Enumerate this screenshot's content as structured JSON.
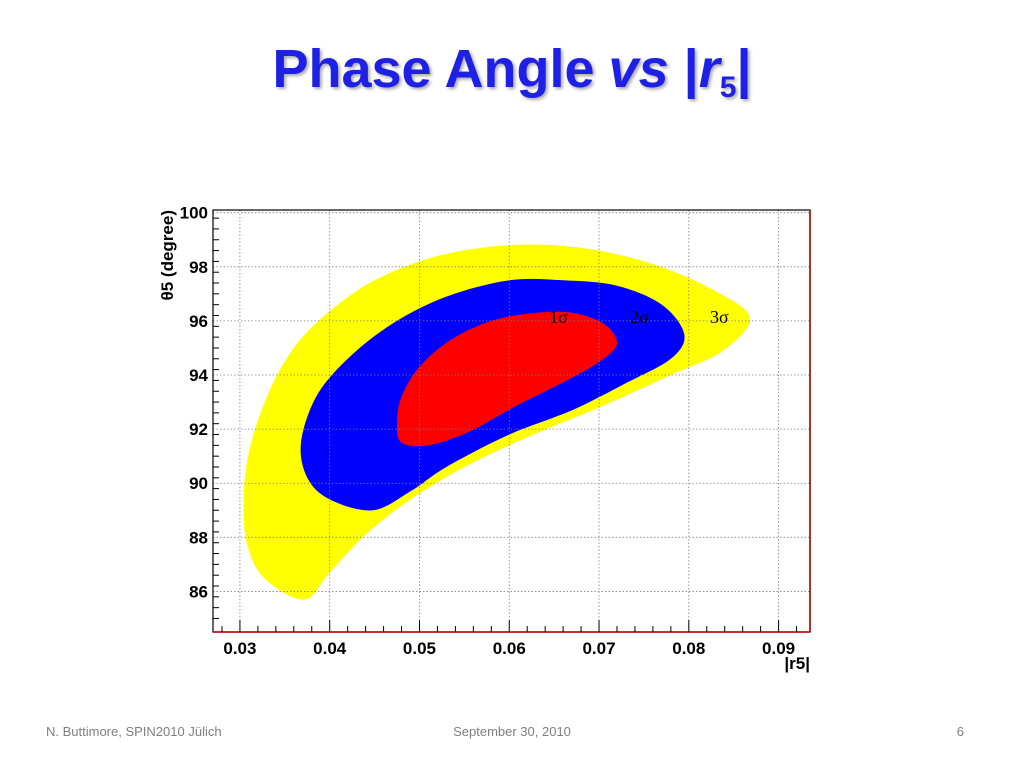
{
  "slide": {
    "title_main": "Phase Angle",
    "title_vs": "vs",
    "title_bar_open": "|",
    "title_r": "r",
    "title_sub": "5",
    "title_bar_close": "|"
  },
  "footer": {
    "left": "N. Buttimore, SPIN2010 Jülich",
    "center": "September 30, 2010",
    "page": "6"
  },
  "chart_data": {
    "type": "contour",
    "xlabel": "|r5|",
    "ylabel": "θ5 (degree)",
    "xlim": [
      0.027,
      0.0935
    ],
    "ylim": [
      84.5,
      100.1
    ],
    "xticks": [
      0.03,
      0.04,
      0.05,
      0.06,
      0.07,
      0.08,
      0.09
    ],
    "xtick_labels": [
      "0.03",
      "0.04",
      "0.05",
      "0.06",
      "0.07",
      "0.08",
      "0.09"
    ],
    "yticks": [
      86,
      88,
      90,
      92,
      94,
      96,
      98,
      100
    ],
    "ytick_labels": [
      "86",
      "88",
      "90",
      "92",
      "94",
      "96",
      "98",
      "100"
    ],
    "grid": true,
    "colors": {
      "3sigma": "#ffff00",
      "2sigma": "#0000ff",
      "1sigma": "#ff0000",
      "grid": "#808080",
      "frame": "#000000",
      "right_edge": "#c00000"
    },
    "regions": [
      {
        "name": "3σ",
        "label": "3σ",
        "color": "#ffff00",
        "label_at": [
          0.0834,
          96.0
        ],
        "points": [
          [
            0.0372,
            85.7
          ],
          [
            0.033,
            86.4
          ],
          [
            0.031,
            87.5
          ],
          [
            0.0304,
            89.0
          ],
          [
            0.0309,
            91.0
          ],
          [
            0.033,
            93.2
          ],
          [
            0.036,
            95.0
          ],
          [
            0.0398,
            96.3
          ],
          [
            0.045,
            97.5
          ],
          [
            0.052,
            98.4
          ],
          [
            0.06,
            98.8
          ],
          [
            0.068,
            98.7
          ],
          [
            0.076,
            98.1
          ],
          [
            0.083,
            97.1
          ],
          [
            0.0868,
            96.1
          ],
          [
            0.0838,
            94.9
          ],
          [
            0.078,
            94.0
          ],
          [
            0.07,
            92.8
          ],
          [
            0.062,
            91.7
          ],
          [
            0.055,
            90.6
          ],
          [
            0.049,
            89.4
          ],
          [
            0.044,
            88.1
          ],
          [
            0.04,
            86.7
          ]
        ]
      },
      {
        "name": "2σ",
        "label": "2σ",
        "color": "#0000ff",
        "label_at": [
          0.0745,
          96.0
        ],
        "points": [
          [
            0.0448,
            89.0
          ],
          [
            0.04,
            89.4
          ],
          [
            0.0375,
            90.2
          ],
          [
            0.0368,
            91.5
          ],
          [
            0.0385,
            93.2
          ],
          [
            0.042,
            94.6
          ],
          [
            0.047,
            95.9
          ],
          [
            0.053,
            96.9
          ],
          [
            0.06,
            97.5
          ],
          [
            0.066,
            97.5
          ],
          [
            0.072,
            97.3
          ],
          [
            0.077,
            96.6
          ],
          [
            0.0795,
            95.5
          ],
          [
            0.078,
            94.6
          ],
          [
            0.073,
            93.7
          ],
          [
            0.067,
            92.7
          ],
          [
            0.06,
            91.8
          ],
          [
            0.053,
            90.6
          ],
          [
            0.049,
            89.7
          ]
        ]
      },
      {
        "name": "1σ",
        "label": "1σ",
        "color": "#ff0000",
        "label_at": [
          0.0655,
          96.0
        ],
        "points": [
          [
            0.048,
            91.5
          ],
          [
            0.0475,
            92.2
          ],
          [
            0.048,
            93.2
          ],
          [
            0.05,
            94.3
          ],
          [
            0.0535,
            95.3
          ],
          [
            0.058,
            96.0
          ],
          [
            0.063,
            96.3
          ],
          [
            0.067,
            96.3
          ],
          [
            0.0705,
            95.9
          ],
          [
            0.072,
            95.2
          ],
          [
            0.0705,
            94.6
          ],
          [
            0.067,
            93.9
          ],
          [
            0.061,
            92.9
          ],
          [
            0.0555,
            91.9
          ],
          [
            0.051,
            91.4
          ]
        ]
      }
    ]
  }
}
